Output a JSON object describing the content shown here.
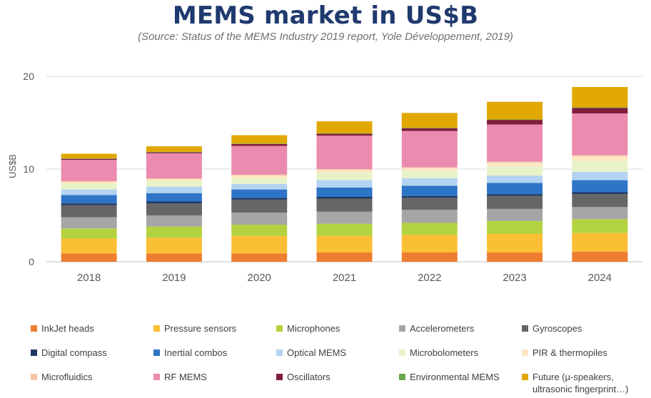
{
  "title": "MEMS market in US$B",
  "subtitle": "(Source: Status of the MEMS Industry 2019 report, Yole Développement, 2019)",
  "chart_data": {
    "type": "bar",
    "stacked": true,
    "categories": [
      "2018",
      "2019",
      "2020",
      "2021",
      "2022",
      "2023",
      "2024"
    ],
    "ylabel": "US$B",
    "xlabel": "",
    "ylim": [
      0,
      20
    ],
    "yticks": [
      0,
      10,
      20
    ],
    "grid": true,
    "legend_position": "bottom",
    "series": [
      {
        "name": "InkJet heads",
        "color": "#ed7d31",
        "values": [
          0.9,
          0.9,
          0.9,
          1.0,
          1.0,
          1.0,
          1.1
        ]
      },
      {
        "name": "Pressure sensors",
        "color": "#fbbf35",
        "values": [
          1.6,
          1.7,
          1.9,
          1.8,
          1.9,
          2.0,
          2.0
        ]
      },
      {
        "name": "Microphones",
        "color": "#b2d33f",
        "values": [
          1.1,
          1.2,
          1.2,
          1.3,
          1.3,
          1.4,
          1.5
        ]
      },
      {
        "name": "Accelerometers",
        "color": "#a6a6a6",
        "values": [
          1.2,
          1.2,
          1.3,
          1.3,
          1.4,
          1.3,
          1.3
        ]
      },
      {
        "name": "Gyroscopes",
        "color": "#666666",
        "values": [
          1.3,
          1.3,
          1.4,
          1.4,
          1.3,
          1.4,
          1.4
        ]
      },
      {
        "name": "Digital compass",
        "color": "#1f3864",
        "values": [
          0.2,
          0.2,
          0.2,
          0.2,
          0.2,
          0.2,
          0.2
        ]
      },
      {
        "name": "Inertial combos",
        "color": "#2e75c7",
        "values": [
          0.9,
          0.9,
          0.9,
          1.0,
          1.1,
          1.2,
          1.3
        ]
      },
      {
        "name": "Optical MEMS",
        "color": "#b3d3f2",
        "values": [
          0.6,
          0.7,
          0.6,
          0.8,
          0.8,
          0.8,
          0.9
        ]
      },
      {
        "name": "Microbolometers",
        "color": "#e8f2c9",
        "values": [
          0.6,
          0.6,
          0.6,
          0.8,
          0.8,
          1.0,
          1.2
        ]
      },
      {
        "name": "PIR & thermopiles",
        "color": "#fde7c2",
        "values": [
          0.2,
          0.2,
          0.3,
          0.3,
          0.3,
          0.4,
          0.5
        ]
      },
      {
        "name": "Microfluidics",
        "color": "#f6c6a8",
        "values": [
          0.1,
          0.1,
          0.1,
          0.1,
          0.1,
          0.1,
          0.1
        ]
      },
      {
        "name": "RF MEMS",
        "color": "#eb8bb0",
        "values": [
          2.3,
          2.7,
          3.1,
          3.6,
          3.9,
          4.0,
          4.5
        ]
      },
      {
        "name": "Oscillators",
        "color": "#7f1d3a",
        "values": [
          0.1,
          0.1,
          0.2,
          0.2,
          0.3,
          0.5,
          0.6
        ]
      },
      {
        "name": "Environmental MEMS",
        "color": "#6aa84f",
        "values": [
          0.05,
          0.05,
          0.05,
          0.05,
          0.05,
          0.05,
          0.05
        ]
      },
      {
        "name": "Future (μ-speakers,\nultrasonic fingerprint…)",
        "color": "#e0a800",
        "values": [
          0.5,
          0.6,
          0.9,
          1.3,
          1.6,
          1.9,
          2.2
        ]
      }
    ]
  }
}
